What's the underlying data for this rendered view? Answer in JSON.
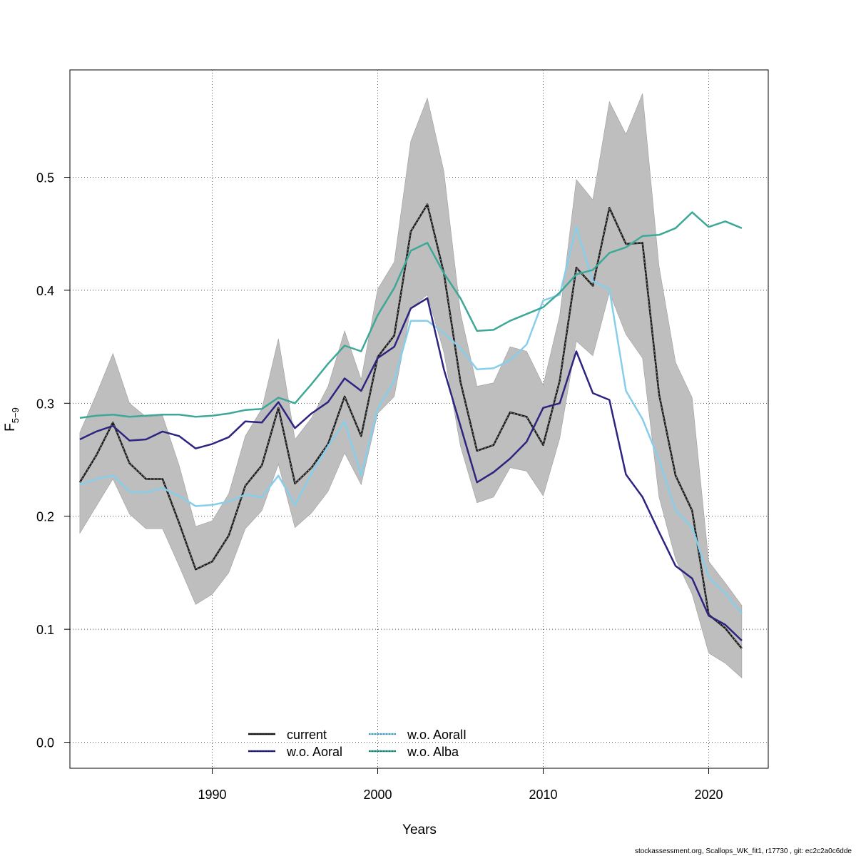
{
  "chart_data": {
    "type": "line",
    "xlabel": "Years",
    "ylabel_main": "F",
    "ylabel_sub": "5−9",
    "xlim": [
      1981.4,
      2023.6
    ],
    "ylim": [
      -0.023,
      0.595
    ],
    "x_ticks": [
      1990,
      2000,
      2010,
      2020
    ],
    "y_ticks": [
      0.0,
      0.1,
      0.2,
      0.3,
      0.4,
      0.5
    ],
    "y_tick_labels": [
      "0.0",
      "0.1",
      "0.2",
      "0.3",
      "0.4",
      "0.5"
    ],
    "grid": true,
    "legend_position": "bottom-center",
    "footer": "stockassessment.org, Scallops_WK_fit1, r17730 , git: ec2c2a0c6dde",
    "x": [
      1982,
      1983,
      1984,
      1985,
      1986,
      1987,
      1988,
      1989,
      1990,
      1991,
      1992,
      1993,
      1994,
      1995,
      1996,
      1997,
      1998,
      1999,
      2000,
      2001,
      2002,
      2003,
      2004,
      2005,
      2006,
      2007,
      2008,
      2009,
      2010,
      2011,
      2012,
      2013,
      2014,
      2015,
      2016,
      2017,
      2018,
      2019,
      2020,
      2021,
      2022
    ],
    "band": {
      "color": "#bebebe",
      "upper": [
        0.274,
        0.308,
        0.344,
        0.3,
        0.288,
        0.289,
        0.245,
        0.191,
        0.196,
        0.22,
        0.271,
        0.295,
        0.357,
        0.268,
        0.287,
        0.315,
        0.364,
        0.321,
        0.401,
        0.425,
        0.532,
        0.57,
        0.505,
        0.38,
        0.315,
        0.318,
        0.35,
        0.346,
        0.316,
        0.378,
        0.498,
        0.48,
        0.567,
        0.538,
        0.574,
        0.421,
        0.336,
        0.305,
        0.16,
        0.141,
        0.121
      ],
      "lower": [
        0.185,
        0.209,
        0.233,
        0.202,
        0.189,
        0.189,
        0.156,
        0.122,
        0.131,
        0.15,
        0.189,
        0.205,
        0.246,
        0.19,
        0.203,
        0.222,
        0.256,
        0.228,
        0.291,
        0.306,
        0.384,
        0.396,
        0.345,
        0.262,
        0.212,
        0.217,
        0.243,
        0.24,
        0.218,
        0.269,
        0.355,
        0.342,
        0.398,
        0.361,
        0.34,
        0.217,
        0.162,
        0.131,
        0.079,
        0.07,
        0.057
      ]
    },
    "series": [
      {
        "name": "current",
        "color": "#1a1a1a",
        "dashed": true,
        "values": [
          0.23,
          0.254,
          0.283,
          0.247,
          0.233,
          0.233,
          0.194,
          0.153,
          0.16,
          0.183,
          0.227,
          0.245,
          0.296,
          0.229,
          0.243,
          0.264,
          0.306,
          0.271,
          0.341,
          0.36,
          0.452,
          0.476,
          0.415,
          0.319,
          0.258,
          0.263,
          0.292,
          0.288,
          0.263,
          0.32,
          0.42,
          0.404,
          0.473,
          0.441,
          0.442,
          0.308,
          0.236,
          0.205,
          0.113,
          0.101,
          0.083
        ]
      },
      {
        "name": "w.o. Aoral",
        "color": "#2c2480",
        "dashed": false,
        "values": [
          0.268,
          0.275,
          0.28,
          0.267,
          0.268,
          0.275,
          0.271,
          0.26,
          0.264,
          0.27,
          0.284,
          0.283,
          0.301,
          0.278,
          0.291,
          0.301,
          0.322,
          0.311,
          0.34,
          0.35,
          0.384,
          0.393,
          0.33,
          0.28,
          0.23,
          0.239,
          0.251,
          0.266,
          0.296,
          0.3,
          0.346,
          0.309,
          0.303,
          0.237,
          0.217,
          0.186,
          0.156,
          0.145,
          0.112,
          0.104,
          0.09
        ]
      },
      {
        "name": "w.o. AoralI",
        "color": "#87ceeb",
        "dashed": false,
        "values": [
          0.228,
          0.233,
          0.236,
          0.222,
          0.221,
          0.225,
          0.218,
          0.209,
          0.21,
          0.213,
          0.219,
          0.217,
          0.236,
          0.21,
          0.238,
          0.262,
          0.284,
          0.236,
          0.295,
          0.32,
          0.373,
          0.373,
          0.362,
          0.349,
          0.33,
          0.331,
          0.338,
          0.352,
          0.391,
          0.396,
          0.456,
          0.408,
          0.401,
          0.311,
          0.286,
          0.25,
          0.205,
          0.19,
          0.146,
          0.132,
          0.114
        ]
      },
      {
        "name": "w.o. Alba",
        "color": "#3da898",
        "dashed": false,
        "values": [
          0.287,
          0.289,
          0.29,
          0.288,
          0.289,
          0.29,
          0.29,
          0.288,
          0.289,
          0.291,
          0.294,
          0.295,
          0.305,
          0.3,
          0.317,
          0.335,
          0.351,
          0.346,
          0.378,
          0.402,
          0.435,
          0.442,
          0.415,
          0.393,
          0.364,
          0.365,
          0.373,
          0.379,
          0.385,
          0.398,
          0.414,
          0.418,
          0.433,
          0.438,
          0.448,
          0.449,
          0.455,
          0.469,
          0.456,
          0.461,
          0.455
        ]
      }
    ]
  }
}
